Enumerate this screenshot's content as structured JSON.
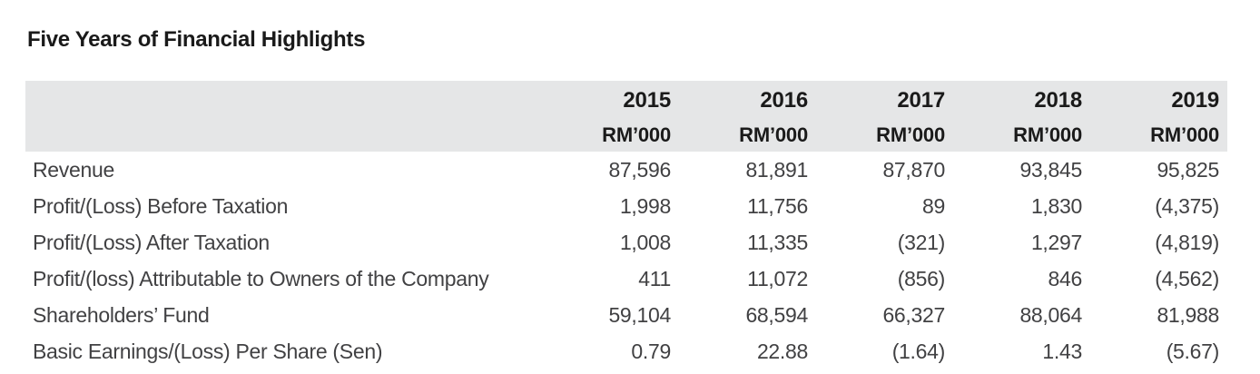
{
  "title": "Five Years of Financial Highlights",
  "table": {
    "columns": [
      {
        "year": "2015",
        "unit": "RM’000"
      },
      {
        "year": "2016",
        "unit": "RM’000"
      },
      {
        "year": "2017",
        "unit": "RM’000"
      },
      {
        "year": "2018",
        "unit": "RM’000"
      },
      {
        "year": "2019",
        "unit": "RM’000"
      }
    ],
    "rows": [
      {
        "label": "Revenue",
        "values": [
          "87,596",
          "81,891",
          "87,870",
          "93,845",
          "95,825"
        ]
      },
      {
        "label": "Profit/(Loss) Before Taxation",
        "values": [
          "1,998",
          "11,756",
          "89",
          "1,830",
          "(4,375)"
        ]
      },
      {
        "label": "Profit/(Loss) After Taxation",
        "values": [
          "1,008",
          "11,335",
          "(321)",
          "1,297",
          "(4,819)"
        ]
      },
      {
        "label": "Profit/(loss) Attributable to Owners of the Company",
        "values": [
          "411",
          "11,072",
          "(856)",
          "846",
          "(4,562)"
        ]
      },
      {
        "label": "Shareholders’ Fund",
        "values": [
          "59,104",
          "68,594",
          "66,327",
          "88,064",
          "81,988"
        ]
      },
      {
        "label": "Basic Earnings/(Loss) Per Share (Sen)",
        "values": [
          "0.79",
          "22.88",
          "(1.64)",
          "1.43",
          "(5.67)"
        ]
      }
    ]
  },
  "colors": {
    "header_band_bg": "#e5e6e7",
    "header_text": "#1a1a1a",
    "body_text": "#414143",
    "page_bg": "#ffffff"
  }
}
